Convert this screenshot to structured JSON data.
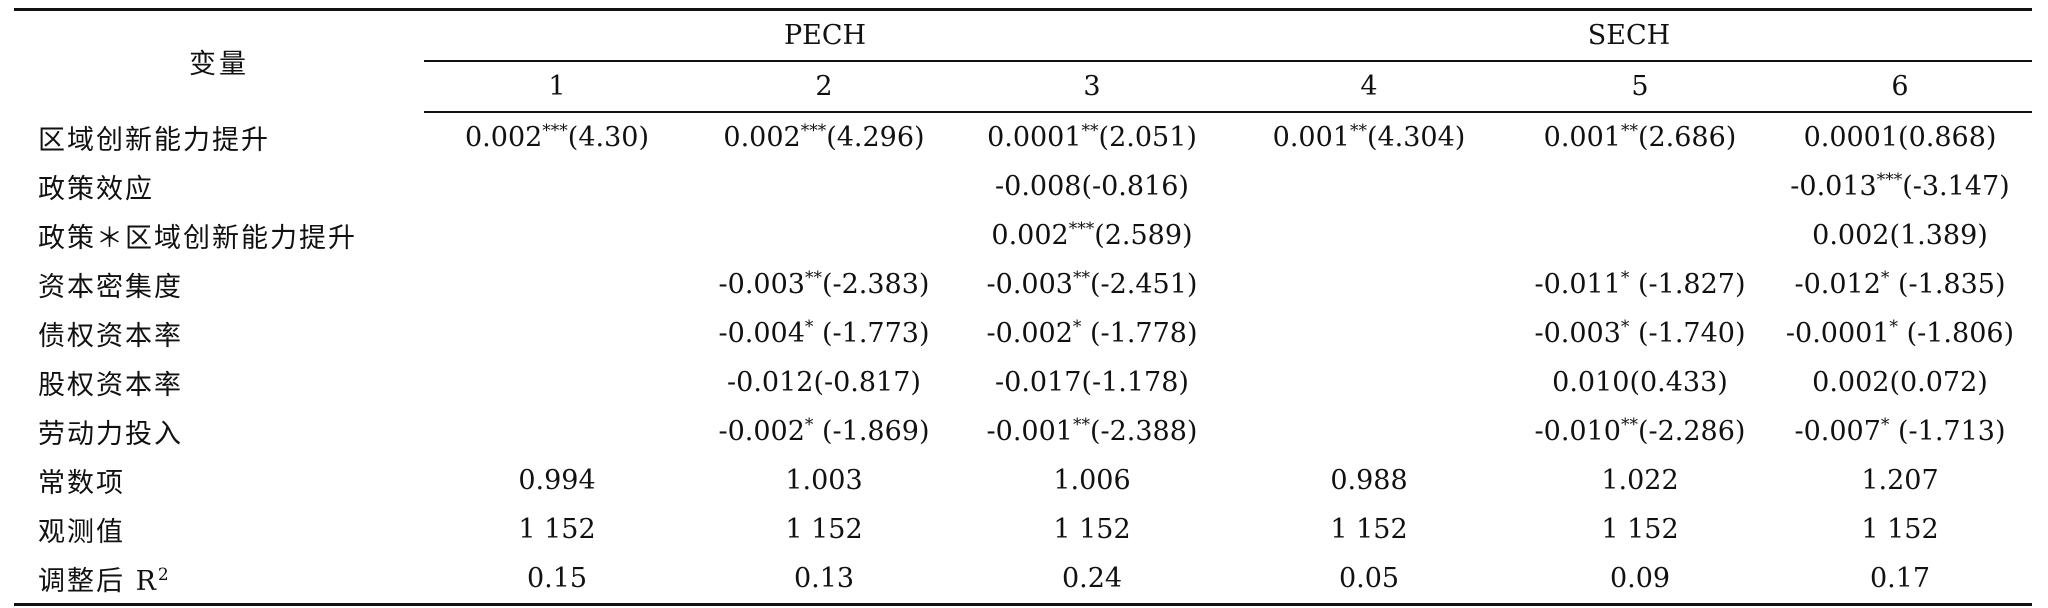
{
  "table": {
    "var_header": "变量",
    "groups": [
      {
        "label": "PECH",
        "columns": [
          "1",
          "2",
          "3"
        ]
      },
      {
        "label": "SECH",
        "columns": [
          "4",
          "5",
          "6"
        ]
      }
    ],
    "rows": [
      {
        "label": "区域创新能力提升",
        "cells": [
          {
            "coef": "0.002",
            "sig": "***",
            "t": "(4.30)"
          },
          {
            "coef": "0.002",
            "sig": "***",
            "t": "(4.296)"
          },
          {
            "coef": "0.0001",
            "sig": "**",
            "t": "(2.051)"
          },
          {
            "coef": "0.001",
            "sig": "**",
            "t": "(4.304)"
          },
          {
            "coef": "0.001",
            "sig": "**",
            "t": "(2.686)"
          },
          {
            "coef": "0.0001",
            "sig": "",
            "t": "(0.868)"
          }
        ]
      },
      {
        "label": "政策效应",
        "cells": [
          {
            "coef": "",
            "sig": "",
            "t": ""
          },
          {
            "coef": "",
            "sig": "",
            "t": ""
          },
          {
            "coef": "-0.008",
            "sig": "",
            "t": "(-0.816)"
          },
          {
            "coef": "",
            "sig": "",
            "t": ""
          },
          {
            "coef": "",
            "sig": "",
            "t": ""
          },
          {
            "coef": "-0.013",
            "sig": "***",
            "t": "(-3.147)"
          }
        ]
      },
      {
        "label": "政策＊区域创新能力提升",
        "cells": [
          {
            "coef": "",
            "sig": "",
            "t": ""
          },
          {
            "coef": "",
            "sig": "",
            "t": ""
          },
          {
            "coef": "0.002",
            "sig": "***",
            "t": "(2.589)"
          },
          {
            "coef": "",
            "sig": "",
            "t": ""
          },
          {
            "coef": "",
            "sig": "",
            "t": ""
          },
          {
            "coef": "0.002",
            "sig": "",
            "t": "(1.389)"
          }
        ]
      },
      {
        "label": "资本密集度",
        "cells": [
          {
            "coef": "",
            "sig": "",
            "t": ""
          },
          {
            "coef": "-0.003",
            "sig": "**",
            "t": "(-2.383)"
          },
          {
            "coef": "-0.003",
            "sig": "**",
            "t": "(-2.451)"
          },
          {
            "coef": "",
            "sig": "",
            "t": ""
          },
          {
            "coef": "-0.011",
            "sig": "*",
            "t": " (-1.827)"
          },
          {
            "coef": "-0.012",
            "sig": "*",
            "t": " (-1.835)"
          }
        ]
      },
      {
        "label": "债权资本率",
        "cells": [
          {
            "coef": "",
            "sig": "",
            "t": ""
          },
          {
            "coef": "-0.004",
            "sig": "*",
            "t": " (-1.773)"
          },
          {
            "coef": "-0.002",
            "sig": "*",
            "t": " (-1.778)"
          },
          {
            "coef": "",
            "sig": "",
            "t": ""
          },
          {
            "coef": "-0.003",
            "sig": "*",
            "t": " (-1.740)"
          },
          {
            "coef": "-0.0001",
            "sig": "*",
            "t": " (-1.806)"
          }
        ]
      },
      {
        "label": "股权资本率",
        "cells": [
          {
            "coef": "",
            "sig": "",
            "t": ""
          },
          {
            "coef": "-0.012",
            "sig": "",
            "t": "(-0.817)"
          },
          {
            "coef": "-0.017",
            "sig": "",
            "t": "(-1.178)"
          },
          {
            "coef": "",
            "sig": "",
            "t": ""
          },
          {
            "coef": "0.010",
            "sig": "",
            "t": "(0.433)"
          },
          {
            "coef": "0.002",
            "sig": "",
            "t": "(0.072)"
          }
        ]
      },
      {
        "label": "劳动力投入",
        "cells": [
          {
            "coef": "",
            "sig": "",
            "t": ""
          },
          {
            "coef": "-0.002",
            "sig": "*",
            "t": " (-1.869)"
          },
          {
            "coef": "-0.001",
            "sig": "**",
            "t": "(-2.388)"
          },
          {
            "coef": "",
            "sig": "",
            "t": ""
          },
          {
            "coef": "-0.010",
            "sig": "**",
            "t": "(-2.286)"
          },
          {
            "coef": "-0.007",
            "sig": "*",
            "t": " (-1.713)"
          }
        ]
      },
      {
        "label": "常数项",
        "cells": [
          {
            "coef": "0.994",
            "sig": "",
            "t": ""
          },
          {
            "coef": "1.003",
            "sig": "",
            "t": ""
          },
          {
            "coef": "1.006",
            "sig": "",
            "t": ""
          },
          {
            "coef": "0.988",
            "sig": "",
            "t": ""
          },
          {
            "coef": "1.022",
            "sig": "",
            "t": ""
          },
          {
            "coef": "1.207",
            "sig": "",
            "t": ""
          }
        ]
      },
      {
        "label": "观测值",
        "cells": [
          {
            "coef": "1 152",
            "sig": "",
            "t": ""
          },
          {
            "coef": "1 152",
            "sig": "",
            "t": ""
          },
          {
            "coef": "1 152",
            "sig": "",
            "t": ""
          },
          {
            "coef": "1 152",
            "sig": "",
            "t": ""
          },
          {
            "coef": "1 152",
            "sig": "",
            "t": ""
          },
          {
            "coef": "1 152",
            "sig": "",
            "t": ""
          }
        ]
      },
      {
        "label": "调整后 R",
        "label_sup": "2",
        "cells": [
          {
            "coef": "0.15",
            "sig": "",
            "t": ""
          },
          {
            "coef": "0.13",
            "sig": "",
            "t": ""
          },
          {
            "coef": "0.24",
            "sig": "",
            "t": ""
          },
          {
            "coef": "0.05",
            "sig": "",
            "t": ""
          },
          {
            "coef": "0.09",
            "sig": "",
            "t": ""
          },
          {
            "coef": "0.17",
            "sig": "",
            "t": ""
          }
        ]
      }
    ]
  }
}
